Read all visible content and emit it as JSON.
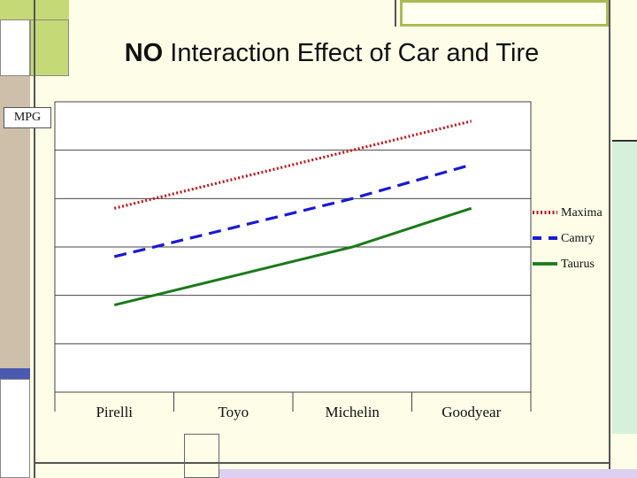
{
  "slide": {
    "title_emphasis": "NO",
    "title_rest": " Interaction Effect of Car and Tire"
  },
  "chart_data": {
    "type": "line",
    "title": "NO Interaction Effect of Car and Tire",
    "ylabel": "MPG",
    "xlabel": "",
    "categories": [
      "Pirelli",
      "Toyo",
      "Michelin",
      "Goodyear"
    ],
    "ylim": [
      0,
      6
    ],
    "grid": true,
    "legend_position": "right",
    "series": [
      {
        "name": "Maxima",
        "values": [
          3.8,
          4.4,
          5.0,
          5.6
        ],
        "color": "#c0171b",
        "style": "dotted"
      },
      {
        "name": "Camry",
        "values": [
          2.8,
          3.4,
          4.0,
          4.7
        ],
        "color": "#1a1ad2",
        "style": "dashed"
      },
      {
        "name": "Taurus",
        "values": [
          1.8,
          2.4,
          3.0,
          3.8
        ],
        "color": "#1a7a1a",
        "style": "solid"
      }
    ]
  }
}
